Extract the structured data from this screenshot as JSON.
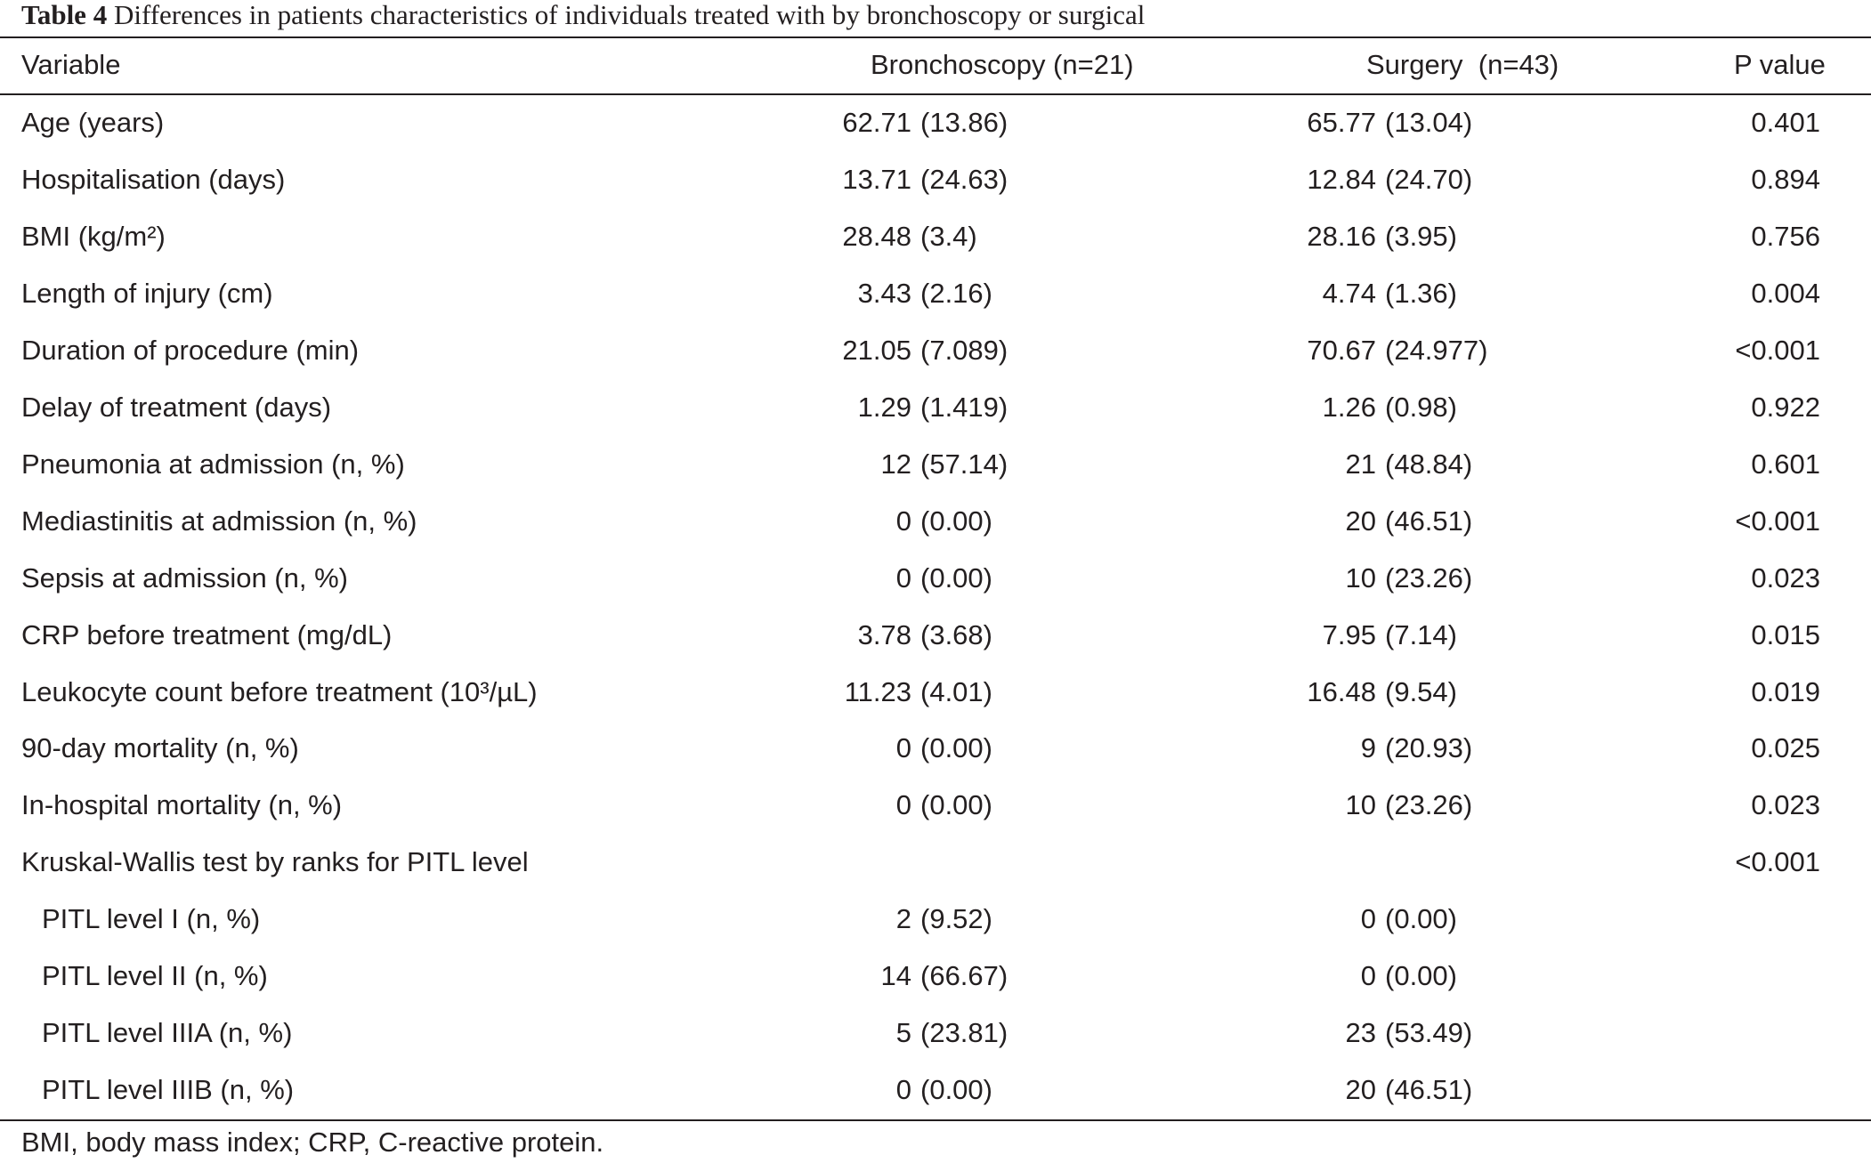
{
  "caption": {
    "label": "Table 4",
    "text": "Differences in patients characteristics of individuals treated with by bronchoscopy or surgical"
  },
  "header": {
    "variable": "Variable",
    "bronchoscopy": "Bronchoscopy (n=21)",
    "surgery": "Surgery  (n=43)",
    "p_value": "P value"
  },
  "rows": [
    {
      "variable": "Age (years)",
      "indent": false,
      "bronch_num": "62.71",
      "bronch_paren": "(13.86)",
      "surg_num": "65.77",
      "surg_paren": "(13.04)",
      "p": "0.401"
    },
    {
      "variable": "Hospitalisation (days)",
      "indent": false,
      "bronch_num": "13.71",
      "bronch_paren": "(24.63)",
      "surg_num": "12.84",
      "surg_paren": "(24.70)",
      "p": "0.894"
    },
    {
      "variable": "BMI (kg/m²)",
      "indent": false,
      "bronch_num": "28.48",
      "bronch_paren": "(3.4)",
      "surg_num": "28.16",
      "surg_paren": "(3.95)",
      "p": "0.756"
    },
    {
      "variable": "Length of injury (cm)",
      "indent": false,
      "bronch_num": "3.43",
      "bronch_paren": "(2.16)",
      "surg_num": "4.74",
      "surg_paren": "(1.36)",
      "p": "0.004"
    },
    {
      "variable": "Duration of procedure (min)",
      "indent": false,
      "bronch_num": "21.05",
      "bronch_paren": "(7.089)",
      "surg_num": "70.67",
      "surg_paren": "(24.977)",
      "p": "<0.001"
    },
    {
      "variable": "Delay of treatment (days)",
      "indent": false,
      "bronch_num": "1.29",
      "bronch_paren": "(1.419)",
      "surg_num": "1.26",
      "surg_paren": "(0.98)",
      "p": "0.922"
    },
    {
      "variable": "Pneumonia at admission (n, %)",
      "indent": false,
      "bronch_num": "12",
      "bronch_paren": "(57.14)",
      "surg_num": "21",
      "surg_paren": "(48.84)",
      "p": "0.601"
    },
    {
      "variable": "Mediastinitis at admission (n, %)",
      "indent": false,
      "bronch_num": "0",
      "bronch_paren": "(0.00)",
      "surg_num": "20",
      "surg_paren": "(46.51)",
      "p": "<0.001"
    },
    {
      "variable": "Sepsis at admission (n, %)",
      "indent": false,
      "bronch_num": "0",
      "bronch_paren": "(0.00)",
      "surg_num": "10",
      "surg_paren": "(23.26)",
      "p": "0.023"
    },
    {
      "variable": "CRP before treatment (mg/dL)",
      "indent": false,
      "bronch_num": "3.78",
      "bronch_paren": "(3.68)",
      "surg_num": "7.95",
      "surg_paren": "(7.14)",
      "p": "0.015"
    },
    {
      "variable": "Leukocyte count before treatment (10³/µL)",
      "indent": false,
      "bronch_num": "11.23",
      "bronch_paren": "(4.01)",
      "surg_num": "16.48",
      "surg_paren": "(9.54)",
      "p": "0.019"
    },
    {
      "variable": "90-day mortality (n, %)",
      "indent": false,
      "bronch_num": "0",
      "bronch_paren": "(0.00)",
      "surg_num": "9",
      "surg_paren": "(20.93)",
      "p": "0.025"
    },
    {
      "variable": "In-hospital mortality (n, %)",
      "indent": false,
      "bronch_num": "0",
      "bronch_paren": "(0.00)",
      "surg_num": "10",
      "surg_paren": "(23.26)",
      "p": "0.023"
    },
    {
      "variable": "Kruskal-Wallis test by ranks for PITL level",
      "indent": false,
      "bronch_num": "",
      "bronch_paren": "",
      "surg_num": "",
      "surg_paren": "",
      "p": "<0.001"
    },
    {
      "variable": "PITL level I (n, %)",
      "indent": true,
      "bronch_num": "2",
      "bronch_paren": "(9.52)",
      "surg_num": "0",
      "surg_paren": "(0.00)",
      "p": ""
    },
    {
      "variable": "PITL level II (n, %)",
      "indent": true,
      "bronch_num": "14",
      "bronch_paren": "(66.67)",
      "surg_num": "0",
      "surg_paren": "(0.00)",
      "p": ""
    },
    {
      "variable": "PITL level IIIA (n, %)",
      "indent": true,
      "bronch_num": "5",
      "bronch_paren": "(23.81)",
      "surg_num": "23",
      "surg_paren": "(53.49)",
      "p": ""
    },
    {
      "variable": "PITL level IIIB (n, %)",
      "indent": true,
      "bronch_num": "0",
      "bronch_paren": "(0.00)",
      "surg_num": "20",
      "surg_paren": "(46.51)",
      "p": ""
    }
  ],
  "footnote": "BMI, body mass index; CRP, C-reactive protein."
}
